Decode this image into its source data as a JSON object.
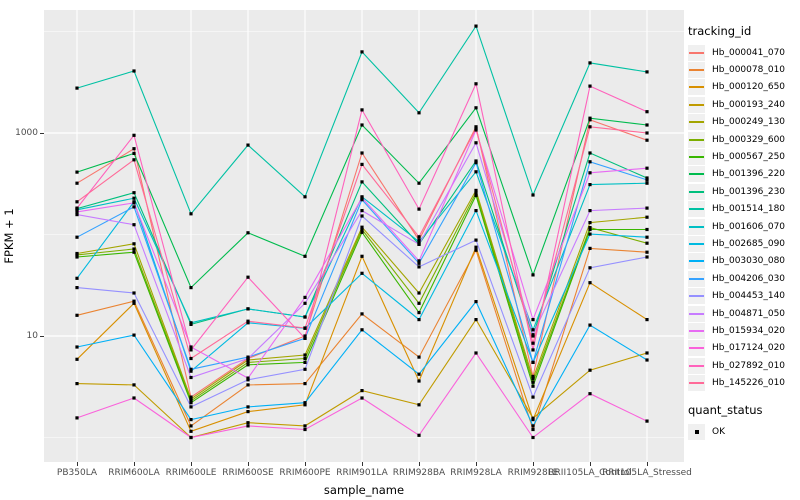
{
  "axes": {
    "x_title": "sample_name",
    "y_title": "FPKM + 1",
    "y_tick_labels": [
      "1000",
      "10"
    ],
    "axis_text_color": "#4D4D4D",
    "panel_bg": "#EBEBEB",
    "grid_color": "#FFFFFF",
    "point_color": "#000000"
  },
  "legend": {
    "tracking_title": "tracking_id",
    "quant_title": "quant_status",
    "quant_items": [
      {
        "label": "OK"
      }
    ]
  },
  "chart_data": {
    "type": "line",
    "xlabel": "sample_name",
    "ylabel": "FPKM + 1",
    "y_scale": "log10",
    "grid": "on",
    "legend_position": "right",
    "y_major_ticks": [
      {
        "label": "10",
        "value": 10
      },
      {
        "label": "1000",
        "value": 1000
      }
    ],
    "y_minor_gridlines": [
      1,
      100,
      10000
    ],
    "categories": [
      "PB350LA",
      "RRIM600LA",
      "RRIM600LE",
      "RRIM600SE",
      "RRIM600PE",
      "RRIM901LA",
      "RRIM928BA",
      "RRIM928LA",
      "RRIM928LE",
      "RRII105LA_Control",
      "RRII105LA_Stressed"
    ],
    "series": [
      {
        "name": "Hb_000041_070",
        "color": "#F8766D",
        "values": [
          320,
          700,
          2.5,
          6,
          10,
          635,
          88,
          1150,
          4,
          1350,
          850
        ]
      },
      {
        "name": "Hb_000078_010",
        "color": "#EA8331",
        "values": [
          16,
          22,
          1.3,
          3.3,
          3.4,
          16.5,
          6.2,
          70,
          1.2,
          73,
          67
        ]
      },
      {
        "name": "Hb_000120_650",
        "color": "#D89000",
        "values": [
          5.9,
          21,
          1.15,
          1.8,
          2.1,
          61,
          3.6,
          75,
          1.5,
          33.5,
          14.5
        ]
      },
      {
        "name": "Hb_000193_240",
        "color": "#C09B00",
        "values": [
          3.4,
          3.3,
          1.0,
          1.4,
          1.3,
          2.9,
          2.1,
          14.5,
          1.55,
          4.6,
          6.8
        ]
      },
      {
        "name": "Hb_000249_130",
        "color": "#A3A500",
        "values": [
          65,
          81,
          2.4,
          5.8,
          6.5,
          118,
          26.5,
          272,
          3.8,
          131,
          148
        ]
      },
      {
        "name": "Hb_000329_600",
        "color": "#7CAE00",
        "values": [
          63,
          72,
          2.3,
          5.5,
          6.0,
          112,
          21,
          257,
          3.5,
          117,
          82
        ]
      },
      {
        "name": "Hb_000567_250",
        "color": "#39B600",
        "values": [
          60,
          67,
          2.2,
          5.2,
          5.5,
          105,
          17,
          242,
          3.2,
          112,
          112
        ]
      },
      {
        "name": "Hb_001396_220",
        "color": "#00BB4E",
        "values": [
          412,
          630,
          30,
          104,
          61,
          1200,
          320,
          1770,
          40,
          1400,
          1200
        ]
      },
      {
        "name": "Hb_001396_230",
        "color": "#00BF7D",
        "values": [
          180,
          258,
          13,
          18.5,
          15.4,
          330,
          80,
          530,
          10,
          635,
          360
        ]
      },
      {
        "name": "Hb_001514_180",
        "color": "#00C1A3",
        "values": [
          2770,
          4080,
          160,
          760,
          235,
          6300,
          1580,
          11300,
          245,
          4900,
          4000
        ]
      },
      {
        "name": "Hb_001606_070",
        "color": "#00BFC4",
        "values": [
          175,
          228,
          13.5,
          18.5,
          15.4,
          235,
          85,
          415,
          11.5,
          310,
          320
        ]
      },
      {
        "name": "Hb_002685_090",
        "color": "#00BAE0",
        "values": [
          37,
          210,
          4.5,
          13.5,
          11.9,
          41.5,
          14.5,
          172,
          5.5,
          101,
          94
        ]
      },
      {
        "name": "Hb_003030_080",
        "color": "#00B0F6",
        "values": [
          7.8,
          10.2,
          1.5,
          2.0,
          2.2,
          11.5,
          4.2,
          21.8,
          1.3,
          12.8,
          5.8
        ]
      },
      {
        "name": "Hb_004206_030",
        "color": "#35A2FF",
        "values": [
          94,
          187,
          4.7,
          6.2,
          9.5,
          220,
          52,
          510,
          5.5,
          520,
          345
        ]
      },
      {
        "name": "Hb_004453_140",
        "color": "#9590FF",
        "values": [
          30,
          26.5,
          2.0,
          3.7,
          4.7,
          152,
          48,
          88,
          2.5,
          47,
          60
        ]
      },
      {
        "name": "Hb_004871_050",
        "color": "#C77CFF",
        "values": [
          157,
          125,
          3.9,
          6.0,
          21,
          172,
          80,
          800,
          10.3,
          172,
          182
        ]
      },
      {
        "name": "Hb_015934_020",
        "color": "#E76BF3",
        "values": [
          167,
          205,
          7.8,
          3.85,
          24,
          230,
          55,
          1070,
          14.5,
          405,
          450
        ]
      },
      {
        "name": "Hb_017124_020",
        "color": "#FA62DB",
        "values": [
          1.56,
          2.45,
          1.0,
          1.3,
          1.2,
          2.45,
          1.05,
          6.8,
          1.0,
          2.7,
          1.45
        ]
      },
      {
        "name": "Hb_027892_010",
        "color": "#FF62BC",
        "values": [
          182,
          950,
          7.3,
          38,
          9.5,
          1690,
          178,
          3050,
          7.3,
          2900,
          1620
        ]
      },
      {
        "name": "Hb_145226_010",
        "color": "#FF6A98",
        "values": [
          210,
          545,
          6.0,
          14,
          12,
          490,
          95,
          1100,
          8.5,
          1150,
          1000
        ]
      }
    ]
  }
}
